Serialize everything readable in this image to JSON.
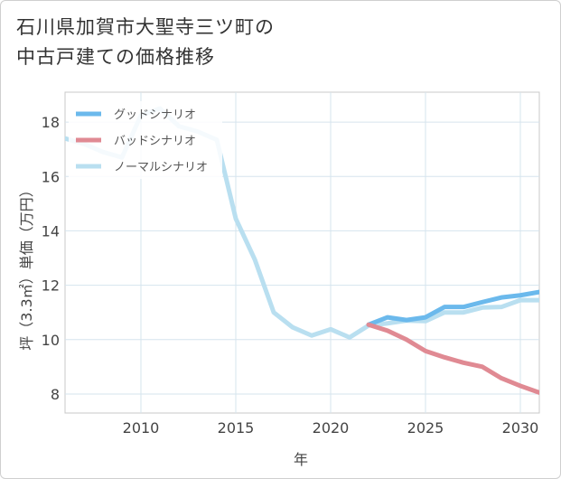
{
  "title_lines": [
    "石川県加賀市大聖寺三ツ町の",
    "中古戸建ての価格推移"
  ],
  "chart_data": {
    "type": "line",
    "xlabel": "年",
    "ylabel": "坪（3.3㎡）単価（万円）",
    "xlim": [
      2006.0,
      2031.0
    ],
    "ylim": [
      7.3,
      19.1
    ],
    "xticks": [
      2010,
      2015,
      2020,
      2025,
      2030
    ],
    "yticks": [
      8,
      10,
      12,
      14,
      16,
      18
    ],
    "grid": true,
    "legend_position": "top-left",
    "series": [
      {
        "name": "グッドシナリオ",
        "color": "#6bb9ec",
        "x": [
          2022,
          2023,
          2024,
          2025,
          2026,
          2027,
          2028,
          2029,
          2030,
          2031
        ],
        "y": [
          10.55,
          10.82,
          10.72,
          10.82,
          11.2,
          11.2,
          11.38,
          11.55,
          11.63,
          11.75
        ]
      },
      {
        "name": "バッドシナリオ",
        "color": "#e08a93",
        "x": [
          2022,
          2023,
          2024,
          2025,
          2026,
          2027,
          2028,
          2029,
          2030,
          2031
        ],
        "y": [
          10.55,
          10.33,
          10.0,
          9.58,
          9.35,
          9.15,
          9.0,
          8.58,
          8.3,
          8.05
        ]
      },
      {
        "name": "ノーマルシナリオ",
        "color": "#b9dff0",
        "x": [
          2006,
          2007,
          2008,
          2009,
          2010,
          2011,
          2012,
          2013,
          2014,
          2015,
          2016,
          2017,
          2018,
          2019,
          2020,
          2021,
          2022,
          2023,
          2024,
          2025,
          2026,
          2027,
          2028,
          2029,
          2030,
          2031
        ],
        "y": [
          17.4,
          17.2,
          16.9,
          16.7,
          18.25,
          18.5,
          17.85,
          17.65,
          17.35,
          14.45,
          12.95,
          11.0,
          10.45,
          10.15,
          10.38,
          10.08,
          10.52,
          10.6,
          10.7,
          10.68,
          11.0,
          11.0,
          11.18,
          11.2,
          11.45,
          11.45
        ]
      }
    ]
  }
}
